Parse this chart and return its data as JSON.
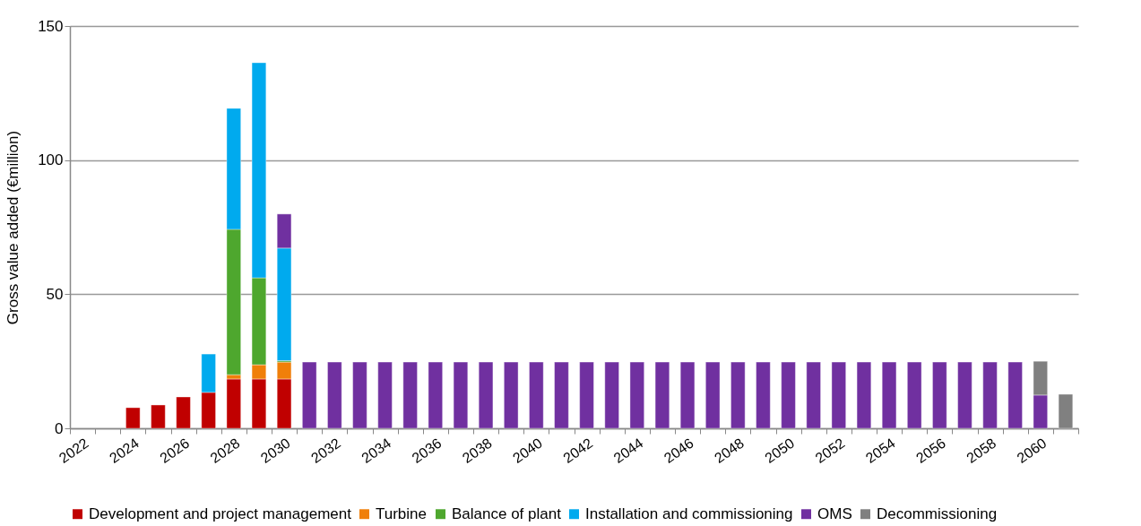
{
  "chart_data": {
    "type": "bar",
    "stacked": true,
    "ylabel": "Gross value added (€million)",
    "categories": [
      "2022",
      null,
      "2024",
      null,
      "2026",
      null,
      "2028",
      null,
      "2030",
      null,
      "2032",
      null,
      "2034",
      null,
      "2036",
      null,
      "2038",
      null,
      "2040",
      null,
      "2042",
      null,
      "2044",
      null,
      "2046",
      null,
      "2048",
      null,
      "2050",
      null,
      "2052",
      null,
      "2054",
      null,
      "2056",
      null,
      "2058",
      null,
      "2060",
      null
    ],
    "ylim": [
      0,
      150
    ],
    "yticks": [
      0,
      50,
      100,
      150
    ],
    "grid": "y",
    "legend": "bottom",
    "series": [
      {
        "name": "Development and project management",
        "color": "#c00000",
        "values": [
          null,
          null,
          7.7,
          8.7,
          11.7,
          13.4,
          18.4,
          18.4,
          18.4,
          null,
          null,
          null,
          null,
          null,
          null,
          null,
          null,
          null,
          null,
          null,
          null,
          null,
          null,
          null,
          null,
          null,
          null,
          null,
          null,
          null,
          null,
          null,
          null,
          null,
          null,
          null,
          null,
          null,
          null,
          null
        ]
      },
      {
        "name": "Turbine",
        "color": "#f07f09",
        "values": [
          null,
          null,
          null,
          null,
          null,
          null,
          1.6,
          5.3,
          6.3,
          null,
          null,
          null,
          null,
          null,
          null,
          null,
          null,
          null,
          null,
          null,
          null,
          null,
          null,
          null,
          null,
          null,
          null,
          null,
          null,
          null,
          null,
          null,
          null,
          null,
          null,
          null,
          null,
          null,
          null,
          null
        ]
      },
      {
        "name": "Balance of plant",
        "color": "#4ea72e",
        "values": [
          null,
          null,
          null,
          null,
          null,
          null,
          54.2,
          32.4,
          0.5,
          null,
          null,
          null,
          null,
          null,
          null,
          null,
          null,
          null,
          null,
          null,
          null,
          null,
          null,
          null,
          null,
          null,
          null,
          null,
          null,
          null,
          null,
          null,
          null,
          null,
          null,
          null,
          null,
          null,
          null,
          null
        ]
      },
      {
        "name": "Installation and commissioning",
        "color": "#00aaee",
        "values": [
          null,
          null,
          null,
          null,
          null,
          14.3,
          45.1,
          80.2,
          42,
          null,
          null,
          null,
          null,
          null,
          null,
          null,
          null,
          null,
          null,
          null,
          null,
          null,
          null,
          null,
          null,
          null,
          null,
          null,
          null,
          null,
          null,
          null,
          null,
          null,
          null,
          null,
          null,
          null,
          null,
          null
        ]
      },
      {
        "name": "OMS",
        "color": "#7030a0",
        "values": [
          null,
          null,
          null,
          null,
          null,
          null,
          null,
          null,
          12.7,
          24.7,
          24.7,
          24.7,
          24.7,
          24.7,
          24.7,
          24.7,
          24.7,
          24.7,
          24.7,
          24.7,
          24.7,
          24.7,
          24.7,
          24.7,
          24.7,
          24.7,
          24.7,
          24.7,
          24.7,
          24.7,
          24.7,
          24.7,
          24.7,
          24.7,
          24.7,
          24.7,
          24.7,
          24.7,
          12.4,
          null
        ]
      },
      {
        "name": "Decommissioning",
        "color": "#808080",
        "values": [
          null,
          null,
          null,
          null,
          null,
          null,
          null,
          null,
          null,
          null,
          null,
          null,
          null,
          null,
          null,
          null,
          null,
          null,
          null,
          null,
          null,
          null,
          null,
          null,
          null,
          null,
          null,
          null,
          null,
          null,
          null,
          null,
          null,
          null,
          null,
          null,
          null,
          null,
          12.6,
          12.7
        ]
      }
    ]
  }
}
